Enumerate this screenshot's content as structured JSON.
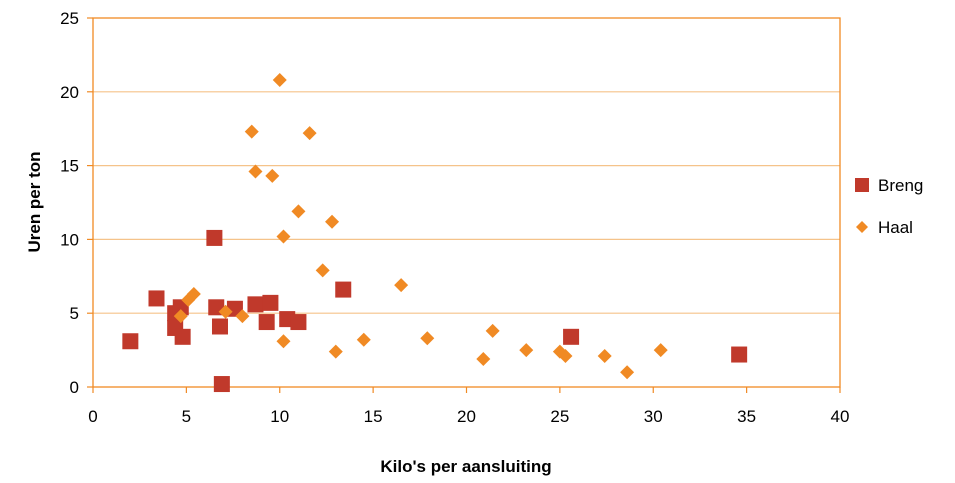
{
  "chart_data": {
    "type": "scatter",
    "title": "",
    "xlabel": "Kilo's per aansluiting",
    "ylabel": "Uren per ton",
    "xlim": [
      0,
      40
    ],
    "ylim": [
      0,
      25
    ],
    "xticks": [
      "0",
      "5",
      "10",
      "15",
      "20",
      "25",
      "30",
      "35",
      "40"
    ],
    "yticks": [
      "0",
      "5",
      "10",
      "15",
      "20",
      "25"
    ],
    "grid": "horizontal",
    "legend_position": "right",
    "series": [
      {
        "name": "Breng",
        "marker": "square",
        "color": "#c0392b",
        "points": [
          [
            2.0,
            3.1
          ],
          [
            3.4,
            6.0
          ],
          [
            4.4,
            5.0
          ],
          [
            4.4,
            4.0
          ],
          [
            4.7,
            5.4
          ],
          [
            4.8,
            3.4
          ],
          [
            6.5,
            10.1
          ],
          [
            6.6,
            5.4
          ],
          [
            6.8,
            4.1
          ],
          [
            6.9,
            0.2
          ],
          [
            7.6,
            5.3
          ],
          [
            8.7,
            5.6
          ],
          [
            9.3,
            4.4
          ],
          [
            9.5,
            5.7
          ],
          [
            10.4,
            4.6
          ],
          [
            11.0,
            4.4
          ],
          [
            13.4,
            6.6
          ],
          [
            25.6,
            3.4
          ],
          [
            34.6,
            2.2
          ]
        ]
      },
      {
        "name": "Haal",
        "marker": "diamond",
        "color": "#f08a24",
        "points": [
          [
            4.7,
            4.8
          ],
          [
            5.1,
            5.9
          ],
          [
            5.4,
            6.3
          ],
          [
            7.1,
            5.1
          ],
          [
            8.0,
            4.8
          ],
          [
            8.5,
            17.3
          ],
          [
            8.7,
            14.6
          ],
          [
            9.6,
            14.3
          ],
          [
            10.0,
            20.8
          ],
          [
            10.2,
            10.2
          ],
          [
            10.2,
            3.1
          ],
          [
            11.0,
            11.9
          ],
          [
            11.6,
            17.2
          ],
          [
            12.3,
            7.9
          ],
          [
            12.8,
            11.2
          ],
          [
            13.0,
            2.4
          ],
          [
            14.5,
            3.2
          ],
          [
            16.5,
            6.9
          ],
          [
            17.9,
            3.3
          ],
          [
            20.9,
            1.9
          ],
          [
            21.4,
            3.8
          ],
          [
            23.2,
            2.5
          ],
          [
            25.0,
            2.4
          ],
          [
            25.3,
            2.1
          ],
          [
            27.4,
            2.1
          ],
          [
            28.6,
            1.0
          ],
          [
            30.4,
            2.5
          ]
        ]
      }
    ]
  }
}
